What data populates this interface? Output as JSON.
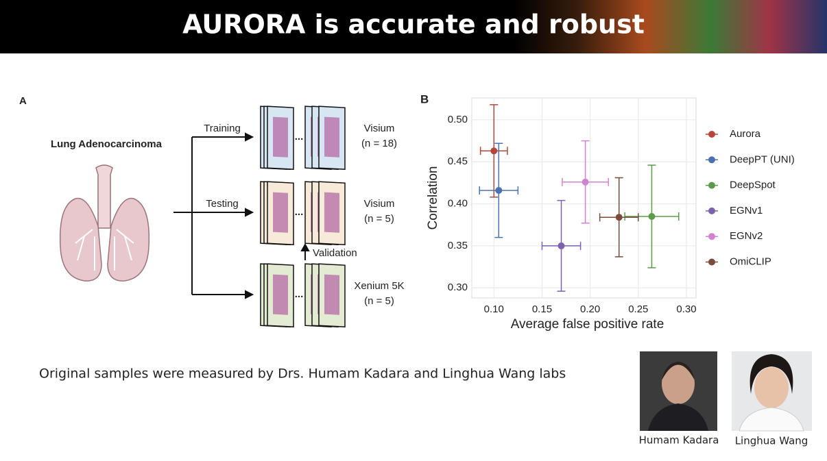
{
  "slide": {
    "title": "AURORA is accurate and robust",
    "caption": "Original samples were measured by Drs. Humam Kadara and Linghua Wang labs",
    "people": [
      "Humam Kadara",
      "Linghua Wang"
    ]
  },
  "panel_a": {
    "label": "A",
    "tissue": "Lung Adenocarcinoma",
    "ellipsis": "...",
    "validation": "Validation",
    "rows": [
      {
        "split": "Training",
        "platform": "Visium",
        "count": "(n = 18)"
      },
      {
        "split": "Testing",
        "platform": "Visium",
        "count": "(n = 5)"
      },
      {
        "platform": "Xenium 5K",
        "count": "(n = 5)"
      }
    ]
  },
  "chart_data": {
    "type": "scatter",
    "label": "B",
    "xlabel": "Average false positive rate",
    "ylabel": "Correlation",
    "xlim": [
      0.077,
      0.31
    ],
    "ylim": [
      0.288,
      0.526
    ],
    "xticks": [
      {
        "value": 0.1,
        "label": "0.10"
      },
      0.15,
      {
        "value": 0.2,
        "label": "0.20"
      },
      0.25,
      {
        "value": 0.3,
        "label": "0.30"
      }
    ],
    "yticks": [
      {
        "value": 0.3,
        "label": "0.30"
      },
      0.35,
      {
        "value": 0.4,
        "label": "0.40"
      },
      0.45,
      {
        "value": 0.5,
        "label": "0.50"
      }
    ],
    "grid": true,
    "legend": "right",
    "series": [
      {
        "name": "Aurora",
        "color": "#b5473a",
        "x": [
          0.1
        ],
        "values": [
          0.463
        ],
        "xerr": [
          0.014
        ],
        "yerr": [
          0.055
        ]
      },
      {
        "name": "DeepPT (UNI)",
        "color": "#4a72b0",
        "x": [
          0.105
        ],
        "values": [
          0.416
        ],
        "xerr": [
          0.02
        ],
        "yerr": [
          0.056
        ]
      },
      {
        "name": "DeepSpot",
        "color": "#5a9a4a",
        "x": [
          0.264
        ],
        "values": [
          0.385
        ],
        "xerr": [
          0.028
        ],
        "yerr": [
          0.061
        ]
      },
      {
        "name": "EGNv1",
        "color": "#7a62b0",
        "x": [
          0.17
        ],
        "values": [
          0.35
        ],
        "xerr": [
          0.02
        ],
        "yerr": [
          0.054
        ]
      },
      {
        "name": "EGNv2",
        "color": "#d183d0",
        "x": [
          0.195
        ],
        "values": [
          0.426
        ],
        "xerr": [
          0.024
        ],
        "yerr": [
          0.049
        ]
      },
      {
        "name": "OmiCLIP",
        "color": "#7a4a3a",
        "x": [
          0.23
        ],
        "values": [
          0.384
        ],
        "xerr": [
          0.02
        ],
        "yerr": [
          0.047
        ]
      }
    ]
  }
}
